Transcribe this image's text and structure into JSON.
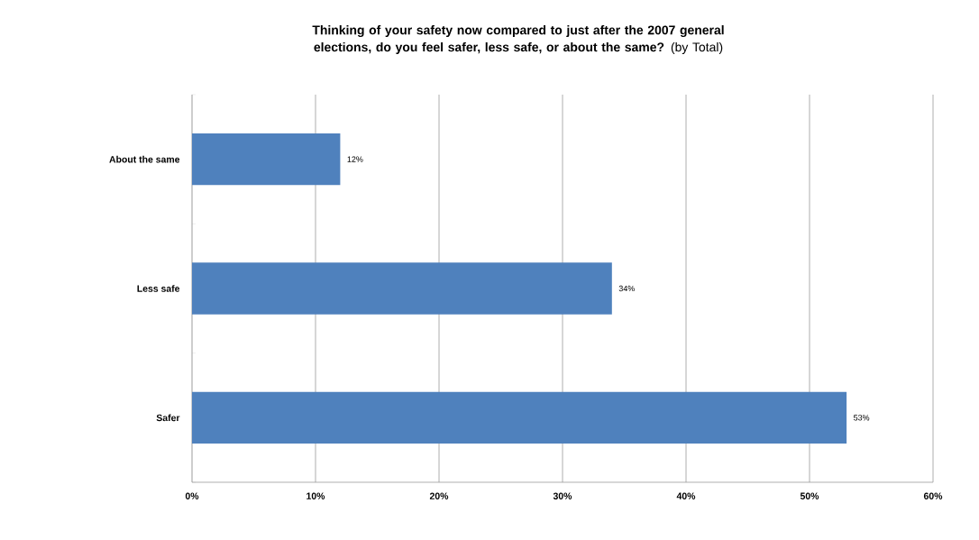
{
  "chart_data": {
    "type": "bar",
    "orientation": "horizontal",
    "title": "**Thinking of your safety now compared to just after the 2007 general elections, do you feel safer, less safe, or about the same?** (by Total)",
    "categories": [
      "About the same",
      "Less safe",
      "Safer"
    ],
    "values": [
      12,
      34,
      53
    ],
    "value_labels": [
      "12%",
      "34%",
      "53%"
    ],
    "color": "#4f81bd",
    "xlim": [
      0,
      60
    ],
    "xticks": [
      {
        "value": 0,
        "label": "0%"
      },
      {
        "value": 10,
        "label": "10%"
      },
      {
        "value": 20,
        "label": "20%"
      },
      {
        "value": 30,
        "label": "30%"
      },
      {
        "value": 40,
        "label": "40%"
      },
      {
        "value": 50,
        "label": "50%"
      },
      {
        "value": 60,
        "label": "60%"
      }
    ],
    "grid": "x"
  }
}
